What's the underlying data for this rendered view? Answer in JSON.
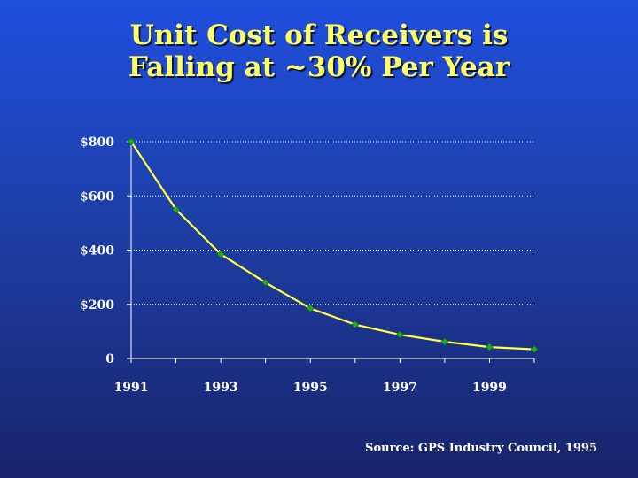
{
  "slide": {
    "title_line1": "Unit Cost of Receivers is",
    "title_line2": "Falling at ~30% Per Year",
    "source": "Source: GPS Industry Council, 1995"
  },
  "colors": {
    "title": "#ffff66",
    "line": "#ffff44",
    "marker": "#22aa22",
    "grid": "#ffffff",
    "text": "#ffffff"
  },
  "chart_data": {
    "type": "line",
    "title": "",
    "xlabel": "",
    "ylabel": "",
    "x": [
      1991,
      1992,
      1993,
      1994,
      1995,
      1996,
      1997,
      1998,
      1999,
      2000
    ],
    "values": [
      800,
      550,
      385,
      280,
      185,
      125,
      88,
      62,
      42,
      34
    ],
    "xlim": [
      1991,
      2000
    ],
    "ylim": [
      0,
      800
    ],
    "y_ticks": [
      {
        "value": 0,
        "label": "0"
      },
      {
        "value": 200,
        "label": "$200"
      },
      {
        "value": 400,
        "label": "$400"
      },
      {
        "value": 600,
        "label": "$600"
      },
      {
        "value": 800,
        "label": "$800"
      }
    ],
    "x_ticks": [
      {
        "value": 1991,
        "label": "1991"
      },
      {
        "value": 1993,
        "label": "1993"
      },
      {
        "value": 1995,
        "label": "1995"
      },
      {
        "value": 1997,
        "label": "1997"
      },
      {
        "value": 1999,
        "label": "1999"
      }
    ],
    "grid": "horizontal dotted",
    "marker": "diamond"
  }
}
